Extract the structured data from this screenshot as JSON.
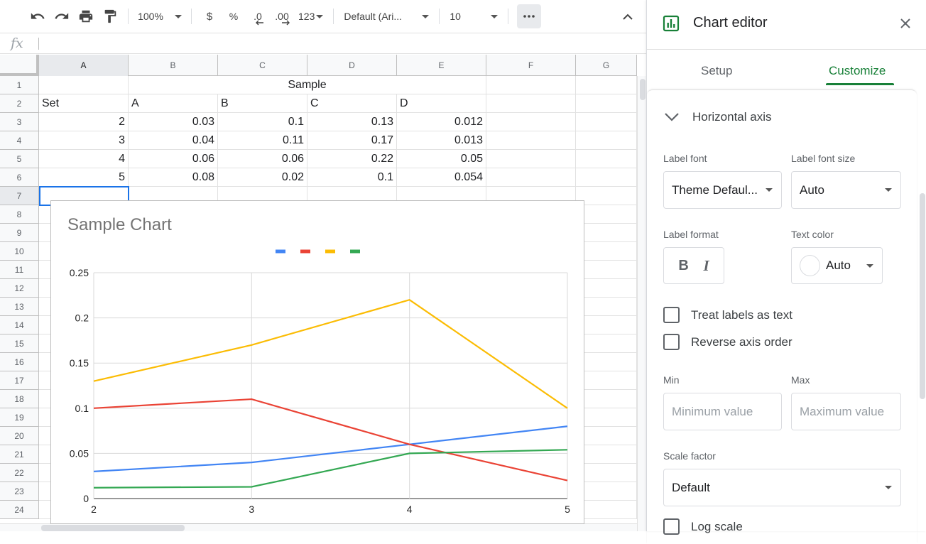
{
  "toolbar": {
    "zoom": "100%",
    "currency": "$",
    "percent": "%",
    "decrease_decimal": ".0",
    "increase_decimal": ".00",
    "more_formats": "123",
    "font": "Default (Ari...",
    "font_size": "10"
  },
  "formula_bar": {
    "fx": "fx"
  },
  "grid": {
    "columns": [
      "A",
      "B",
      "C",
      "D",
      "E",
      "F",
      "G"
    ],
    "rows": [
      "1",
      "2",
      "3",
      "4",
      "5",
      "6",
      "7",
      "8",
      "9",
      "10",
      "11",
      "12",
      "13",
      "14",
      "15",
      "16",
      "17",
      "18",
      "19",
      "20",
      "21",
      "22",
      "23",
      "24"
    ],
    "cells": {
      "b1": "Sample",
      "header": [
        "Set",
        "A",
        "B",
        "C",
        "D"
      ],
      "data": [
        [
          "2",
          "0.03",
          "0.1",
          "0.13",
          "0.012"
        ],
        [
          "3",
          "0.04",
          "0.11",
          "0.17",
          "0.013"
        ],
        [
          "4",
          "0.06",
          "0.06",
          "0.22",
          "0.05"
        ],
        [
          "5",
          "0.08",
          "0.02",
          "0.1",
          "0.054"
        ]
      ]
    }
  },
  "chart_data": {
    "type": "line",
    "title": "Sample Chart",
    "x": [
      2,
      3,
      4,
      5
    ],
    "series": [
      {
        "values": [
          0.03,
          0.04,
          0.06,
          0.08
        ],
        "color": "#4285f4"
      },
      {
        "values": [
          0.1,
          0.11,
          0.06,
          0.02
        ],
        "color": "#ea4335"
      },
      {
        "values": [
          0.13,
          0.17,
          0.22,
          0.1
        ],
        "color": "#fbbc04"
      },
      {
        "values": [
          0.012,
          0.013,
          0.05,
          0.054
        ],
        "color": "#34a853"
      }
    ],
    "ylim": [
      0,
      0.25
    ],
    "xlim": [
      2,
      5
    ],
    "y_ticks": [
      "0",
      "0.05",
      "0.1",
      "0.15",
      "0.2",
      "0.25"
    ],
    "x_ticks": [
      "2",
      "3",
      "4",
      "5"
    ],
    "legend": "top",
    "grid": true
  },
  "editor": {
    "title": "Chart editor",
    "tabs": {
      "setup": "Setup",
      "customize": "Customize"
    },
    "section": "Horizontal axis",
    "label_font_label": "Label font",
    "label_font_value": "Theme Defaul...",
    "label_font_size_label": "Label font size",
    "label_font_size_value": "Auto",
    "label_format_label": "Label format",
    "bold": "B",
    "italic": "I",
    "text_color_label": "Text color",
    "text_color_value": "Auto",
    "treat_labels": "Treat labels as text",
    "reverse_order": "Reverse axis order",
    "min_label": "Min",
    "min_placeholder": "Minimum value",
    "max_label": "Max",
    "max_placeholder": "Maximum value",
    "scale_factor_label": "Scale factor",
    "scale_factor_value": "Default",
    "log_scale": "Log scale"
  }
}
